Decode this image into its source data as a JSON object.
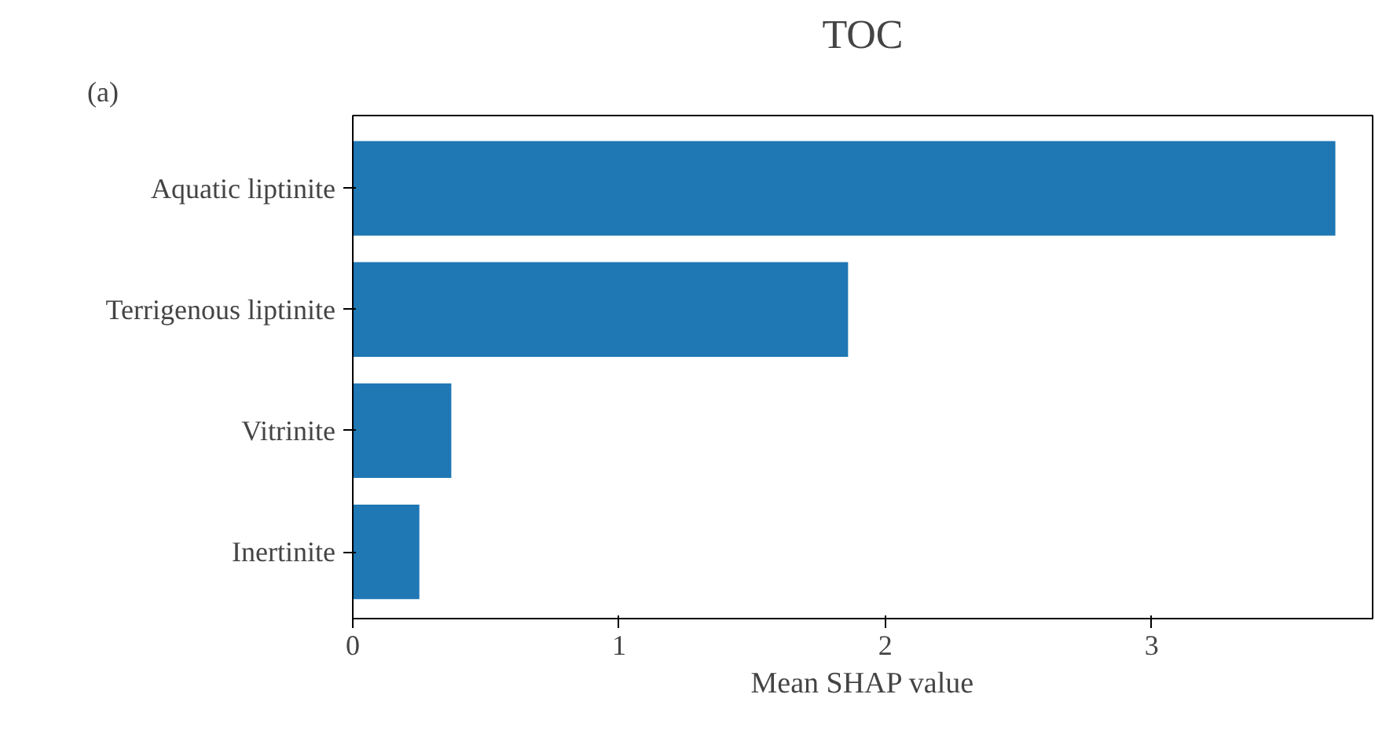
{
  "chart_data": {
    "type": "bar",
    "orientation": "horizontal",
    "title": "TOC",
    "xlabel": "Mean SHAP value",
    "categories": [
      "Aquatic liptinite",
      "Terrigenous liptinite",
      "Vitrinite",
      "Inertinite"
    ],
    "values": [
      3.69,
      1.86,
      0.37,
      0.25
    ],
    "color": "#1f77b4",
    "xlim": [
      0,
      3.83
    ],
    "xticks": [
      0,
      1,
      2,
      3
    ],
    "grid": false,
    "annotations": [
      "(a)"
    ]
  }
}
